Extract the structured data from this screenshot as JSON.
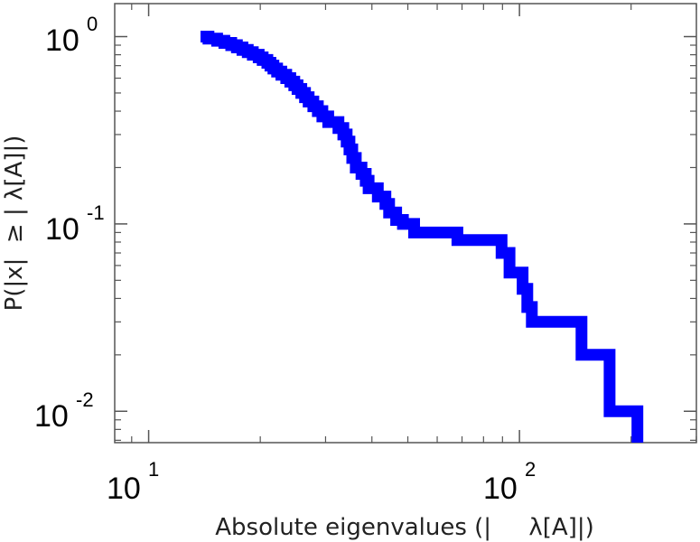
{
  "chart_data": {
    "type": "line",
    "title": "",
    "xlabel": "Absolute eigenvalues (|     λ[A]|)",
    "ylabel": "P(|x|  ≥ | λ[A]|)",
    "xscale": "log",
    "yscale": "log",
    "xlim": [
      8.1,
      300
    ],
    "ylim": [
      0.0068,
      1.5
    ],
    "x_major_ticks": [
      {
        "value": 10,
        "base": "10",
        "exp": "1"
      },
      {
        "value": 100,
        "base": "10",
        "exp": "2"
      }
    ],
    "y_major_ticks": [
      {
        "value": 1,
        "base": "10",
        "exp": "0"
      },
      {
        "value": 0.1,
        "base": "10",
        "exp": "-1"
      },
      {
        "value": 0.01,
        "base": "10",
        "exp": "-2"
      }
    ],
    "grid": false,
    "legend": "none",
    "series": [
      {
        "color": "#0000ff",
        "points": [
          [
            13.8,
            1.0
          ],
          [
            14.5,
            0.975
          ],
          [
            15.3,
            0.95
          ],
          [
            16.0,
            0.925
          ],
          [
            16.7,
            0.9
          ],
          [
            17.3,
            0.875
          ],
          [
            17.9,
            0.85
          ],
          [
            18.5,
            0.825
          ],
          [
            19.1,
            0.8
          ],
          [
            19.8,
            0.775
          ],
          [
            20.3,
            0.75
          ],
          [
            20.9,
            0.725
          ],
          [
            21.3,
            0.7
          ],
          [
            21.7,
            0.675
          ],
          [
            22.2,
            0.65
          ],
          [
            22.8,
            0.625
          ],
          [
            23.5,
            0.6
          ],
          [
            24.1,
            0.575
          ],
          [
            24.7,
            0.55
          ],
          [
            25.2,
            0.525
          ],
          [
            25.8,
            0.5
          ],
          [
            26.4,
            0.475
          ],
          [
            27.0,
            0.45
          ],
          [
            27.8,
            0.425
          ],
          [
            28.6,
            0.4
          ],
          [
            29.4,
            0.375
          ],
          [
            30.5,
            0.35
          ],
          [
            32.5,
            0.325
          ],
          [
            33.5,
            0.3
          ],
          [
            34.2,
            0.275
          ],
          [
            34.8,
            0.25
          ],
          [
            35.4,
            0.225
          ],
          [
            36.2,
            0.2
          ],
          [
            37.5,
            0.185
          ],
          [
            38.5,
            0.17
          ],
          [
            39.2,
            0.155
          ],
          [
            41.5,
            0.14
          ],
          [
            43.5,
            0.128
          ],
          [
            44.5,
            0.115
          ],
          [
            46.5,
            0.105
          ],
          [
            48.5,
            0.1
          ],
          [
            52.0,
            0.09
          ],
          [
            68.0,
            0.082
          ],
          [
            88.0,
            0.082
          ],
          [
            89.5,
            0.07
          ],
          [
            94.0,
            0.055
          ],
          [
            102.0,
            0.045
          ],
          [
            105.0,
            0.036
          ],
          [
            108.0,
            0.03
          ],
          [
            145.0,
            0.03
          ],
          [
            147.0,
            0.02
          ],
          [
            172.0,
            0.02
          ],
          [
            175.0,
            0.01
          ],
          [
            208.0,
            0.01
          ],
          [
            208.0,
            0.0068
          ]
        ]
      }
    ]
  }
}
